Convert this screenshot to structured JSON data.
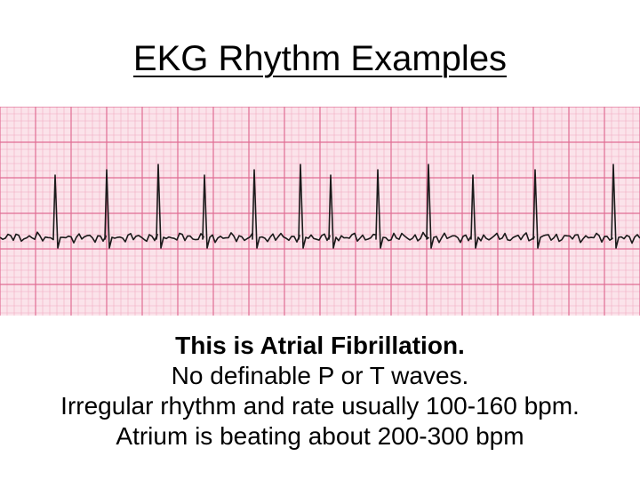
{
  "slide": {
    "title": "EKG Rhythm Examples",
    "caption": {
      "heading": "This is Atrial Fibrillation.",
      "line1": "No definable P or T waves.",
      "line2": "Irregular rhythm and rate usually 100-160 bpm.",
      "line3": "Atrium is beating about 200-300 bpm"
    },
    "colors": {
      "paper": "#fbe3ea",
      "grid_minor": "#f2a9bf",
      "grid_major": "#e06d93",
      "trace": "#1a1a1a"
    }
  }
}
